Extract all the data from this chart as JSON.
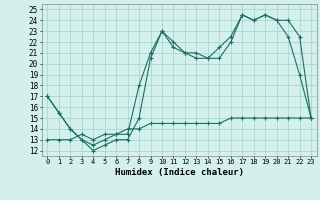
{
  "xlabel": "Humidex (Indice chaleur)",
  "bg_color": "#d4f0ec",
  "grid_color": "#a8d8d0",
  "line_color": "#1a6e64",
  "x_ticks": [
    0,
    1,
    2,
    3,
    4,
    5,
    6,
    7,
    8,
    9,
    10,
    11,
    12,
    13,
    14,
    15,
    16,
    17,
    18,
    19,
    20,
    21,
    22,
    23
  ],
  "y_ticks": [
    12,
    13,
    14,
    15,
    16,
    17,
    18,
    19,
    20,
    21,
    22,
    23,
    24,
    25
  ],
  "xlim": [
    -0.5,
    23.5
  ],
  "ylim": [
    11.5,
    25.5
  ],
  "series1_x": [
    0,
    1,
    2,
    3,
    4,
    5,
    6,
    7,
    8,
    9,
    10,
    11,
    12,
    13,
    14,
    15,
    16,
    17,
    18,
    19,
    20,
    21,
    22,
    23
  ],
  "series1_y": [
    17,
    15.5,
    14,
    13,
    12,
    12.5,
    13,
    13,
    15,
    20.5,
    23,
    22,
    21,
    20.5,
    20.5,
    21.5,
    22.5,
    24.5,
    24,
    24.5,
    24,
    22.5,
    19,
    15
  ],
  "series2_x": [
    0,
    1,
    2,
    3,
    4,
    5,
    6,
    7,
    8,
    9,
    10,
    11,
    12,
    13,
    14,
    15,
    16,
    17,
    18,
    19,
    20,
    21,
    22,
    23
  ],
  "series2_y": [
    17,
    15.5,
    14,
    13,
    12.5,
    13,
    13.5,
    13.5,
    18,
    21,
    23,
    21.5,
    21,
    21,
    20.5,
    20.5,
    22,
    24.5,
    24,
    24.5,
    24,
    24,
    22.5,
    15
  ],
  "series3_x": [
    0,
    1,
    2,
    3,
    4,
    5,
    6,
    7,
    8,
    9,
    10,
    11,
    12,
    13,
    14,
    15,
    16,
    17,
    18,
    19,
    20,
    21,
    22,
    23
  ],
  "series3_y": [
    13,
    13,
    13,
    13.5,
    13,
    13.5,
    13.5,
    14,
    14,
    14.5,
    14.5,
    14.5,
    14.5,
    14.5,
    14.5,
    14.5,
    15,
    15,
    15,
    15,
    15,
    15,
    15,
    15
  ]
}
